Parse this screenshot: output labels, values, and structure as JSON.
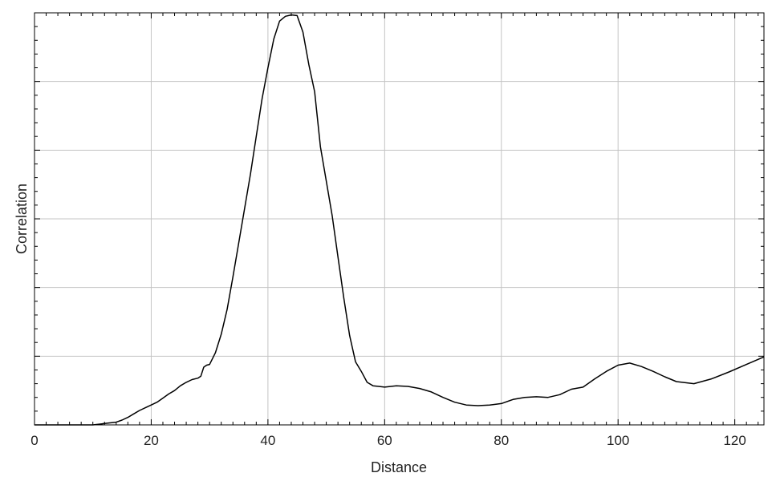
{
  "chart_data": {
    "type": "line",
    "title": "",
    "xlabel": "Distance",
    "ylabel": "Correlation",
    "xlim": [
      0,
      125
    ],
    "ylim": [
      0,
      6
    ],
    "x_ticks": [
      0,
      20,
      40,
      60,
      80,
      100,
      120
    ],
    "x_tick_labels": [
      "0",
      "20",
      "40",
      "60",
      "80",
      "100",
      "120"
    ],
    "y_tick_labels_shown": false,
    "grid": true,
    "legend": "none",
    "series": [
      {
        "color": "#000000",
        "x": [
          0,
          10,
          12,
          14,
          15,
          16,
          17,
          18,
          19,
          20,
          21,
          22,
          23,
          24,
          25,
          26,
          27,
          28,
          28.5,
          29,
          29.5,
          30,
          31,
          32,
          33,
          34,
          35,
          36,
          37,
          38,
          39,
          40,
          41,
          42,
          43,
          44,
          45,
          46,
          47,
          48,
          49,
          50,
          51,
          52,
          53,
          54,
          55,
          56,
          57,
          58,
          59,
          60,
          62,
          64,
          66,
          68,
          70,
          72,
          74,
          76,
          78,
          80,
          82,
          84,
          86,
          88,
          90,
          92,
          94,
          96,
          98,
          100,
          102,
          104,
          106,
          108,
          110,
          113,
          116,
          119,
          122,
          125
        ],
        "y": [
          0.0,
          0.0,
          0.02,
          0.04,
          0.07,
          0.11,
          0.16,
          0.21,
          0.25,
          0.29,
          0.33,
          0.39,
          0.45,
          0.5,
          0.57,
          0.62,
          0.66,
          0.68,
          0.71,
          0.84,
          0.87,
          0.88,
          1.05,
          1.32,
          1.68,
          2.15,
          2.65,
          3.15,
          3.65,
          4.2,
          4.75,
          5.2,
          5.62,
          5.88,
          5.95,
          5.97,
          5.96,
          5.72,
          5.25,
          4.85,
          4.05,
          3.55,
          3.05,
          2.45,
          1.85,
          1.3,
          0.92,
          0.78,
          0.62,
          0.57,
          0.56,
          0.55,
          0.57,
          0.56,
          0.53,
          0.48,
          0.4,
          0.33,
          0.29,
          0.28,
          0.29,
          0.31,
          0.37,
          0.4,
          0.41,
          0.4,
          0.44,
          0.52,
          0.55,
          0.67,
          0.78,
          0.87,
          0.9,
          0.85,
          0.78,
          0.7,
          0.63,
          0.6,
          0.67,
          0.77,
          0.88,
          0.99
        ]
      }
    ]
  }
}
